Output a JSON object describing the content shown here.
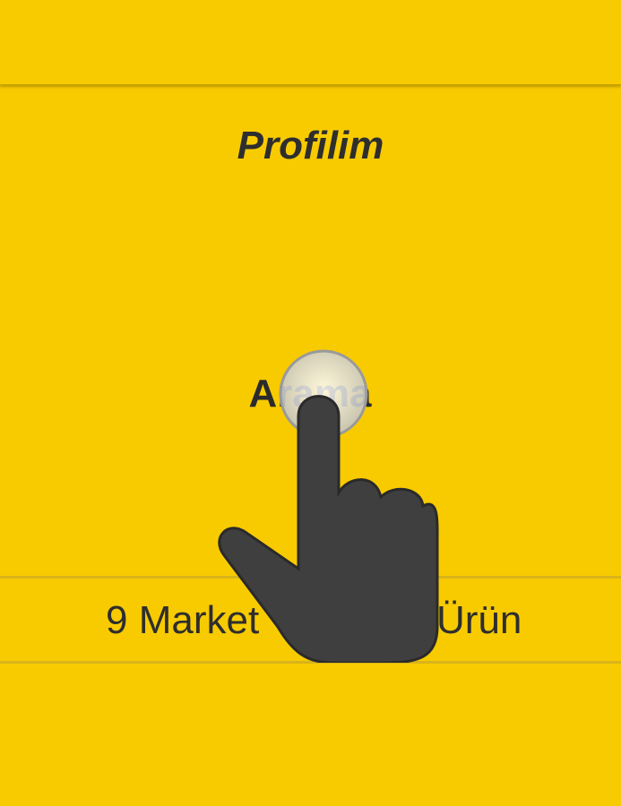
{
  "page": {
    "title": "Profilim",
    "search_label": "Arama",
    "stats": {
      "markets": "9 Market",
      "products": "Ürün"
    }
  },
  "colors": {
    "background": "#F8CB00",
    "text": "#2E2E2E",
    "divider": "#D9B41A"
  },
  "icons": {
    "touch_indicator": "pointing-hand-icon"
  }
}
